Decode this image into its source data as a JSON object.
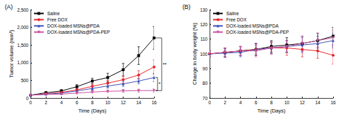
{
  "chart_data": [
    {
      "type": "line",
      "title": "(A)",
      "xlabel": "Time (Days)",
      "ylabel": "Tumor volume (mm³)",
      "x": [
        0,
        2,
        4,
        6,
        8,
        10,
        12,
        14,
        16
      ],
      "xlim": [
        0,
        16
      ],
      "xticks": [
        0,
        2,
        4,
        6,
        8,
        10,
        12,
        14,
        16
      ],
      "ylim": [
        0,
        2500
      ],
      "yticks": [
        0,
        500,
        1000,
        1500,
        2000,
        2500
      ],
      "grid": false,
      "legend": "upper left",
      "series": [
        {
          "name": "Saline",
          "color": "#000000",
          "marker": "square",
          "values": [
            80,
            150,
            200,
            320,
            480,
            580,
            800,
            1200,
            1700
          ],
          "errors": [
            20,
            30,
            40,
            60,
            80,
            120,
            180,
            250,
            320
          ]
        },
        {
          "name": "Free DOX",
          "color": "#e8242b",
          "marker": "circle",
          "values": [
            80,
            120,
            160,
            230,
            330,
            420,
            520,
            650,
            880
          ],
          "errors": [
            15,
            20,
            30,
            40,
            60,
            80,
            100,
            120,
            200
          ]
        },
        {
          "name": "DOX-loaded MSNs@PDA",
          "color": "#3b4fb8",
          "marker": "triangle",
          "values": [
            80,
            110,
            140,
            200,
            270,
            340,
            400,
            480,
            580
          ],
          "errors": [
            15,
            20,
            25,
            35,
            50,
            60,
            70,
            80,
            120
          ]
        },
        {
          "name": "DOX-loaded MSNs@PDA-PEP",
          "color": "#c9509f",
          "marker": "triangle_down",
          "values": [
            80,
            100,
            110,
            140,
            170,
            190,
            200,
            210,
            210
          ],
          "errors": [
            10,
            15,
            20,
            25,
            30,
            35,
            40,
            40,
            50
          ]
        }
      ],
      "annotations": [
        {
          "text": "**",
          "from": "Saline",
          "to": "DOX-loaded MSNs@PDA-PEP"
        },
        {
          "text": "*",
          "from": "DOX-loaded MSNs@PDA",
          "to": "DOX-loaded MSNs@PDA-PEP"
        }
      ]
    },
    {
      "type": "line",
      "title": "(B)",
      "xlabel": "Time (Days)",
      "ylabel": "Change in body weight (%)",
      "x": [
        0,
        2,
        4,
        6,
        8,
        10,
        12,
        14,
        16
      ],
      "xlim": [
        0,
        16
      ],
      "xticks": [
        0,
        2,
        4,
        6,
        8,
        10,
        12,
        14,
        16
      ],
      "ylim": [
        70,
        130
      ],
      "yticks": [
        70,
        80,
        90,
        100,
        110,
        120,
        130
      ],
      "grid": false,
      "legend": "upper left",
      "series": [
        {
          "name": "Saline",
          "color": "#000000",
          "marker": "square",
          "values": [
            100,
            101,
            102,
            103,
            105,
            106,
            107,
            109,
            112
          ],
          "errors": [
            2,
            3,
            3,
            4,
            4,
            5,
            5,
            5,
            6
          ]
        },
        {
          "name": "Free DOX",
          "color": "#e8242b",
          "marker": "circle",
          "values": [
            100,
            101,
            102,
            103,
            104,
            104,
            103,
            102,
            99
          ],
          "errors": [
            2,
            3,
            3,
            4,
            4,
            5,
            5,
            5,
            6
          ]
        },
        {
          "name": "DOX-loaded MSNs@PDA",
          "color": "#3b4fb8",
          "marker": "triangle",
          "values": [
            100,
            100.5,
            101,
            103,
            104,
            105,
            106,
            107,
            109
          ],
          "errors": [
            2,
            3,
            3,
            4,
            4,
            4,
            5,
            5,
            5
          ]
        },
        {
          "name": "DOX-loaded MSNs@PDA-PEP",
          "color": "#c9509f",
          "marker": "triangle_down",
          "values": [
            100,
            101,
            102,
            102,
            104,
            105,
            107,
            109,
            111
          ],
          "errors": [
            2,
            3,
            3,
            4,
            4,
            4,
            5,
            5,
            5
          ]
        }
      ]
    }
  ]
}
